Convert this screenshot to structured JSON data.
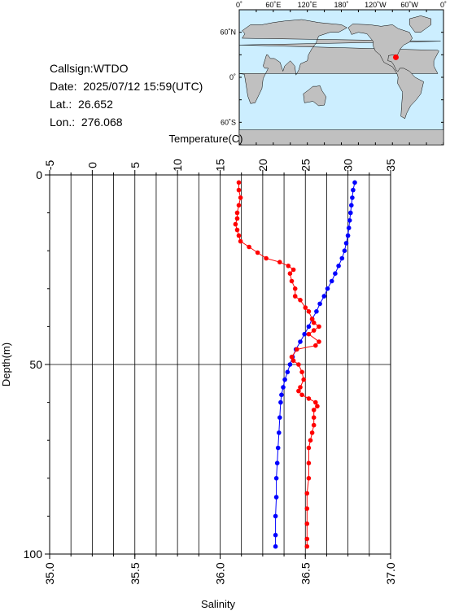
{
  "station": {
    "callsign_label": "Callsign:",
    "callsign": "WTDO",
    "date_label": "Date:",
    "date": "2025/07/12 15:59(UTC)",
    "lat_label": "Lat.:",
    "lat": "26.652",
    "lon_label": "Lon.:",
    "lon": "276.068"
  },
  "map": {
    "lon_labels": [
      "0˚",
      "60˚E",
      "120˚E",
      "180˚",
      "120˚W",
      "60˚W",
      "0˚"
    ],
    "lat_labels": [
      "60˚N",
      "0˚",
      "60˚S"
    ],
    "ocean_color": "#cceeff",
    "land_color": "#c0c0c0",
    "marker_color": "#ff0000",
    "marker": {
      "lon": 276.068,
      "lat": 26.652
    }
  },
  "chart_data": {
    "type": "line",
    "top_axis": {
      "label": "Temperature(C)",
      "range": [
        -5,
        35
      ],
      "ticks": [
        "-5",
        "0",
        "5",
        "10",
        "15",
        "20",
        "25",
        "30",
        "35"
      ]
    },
    "bottom_axis": {
      "label": "Salinity",
      "range": [
        35.0,
        37.0
      ],
      "ticks": [
        "35.0",
        "35.5",
        "36.0",
        "36.5",
        "37.0"
      ]
    },
    "y_axis": {
      "label": "Depth(m)",
      "range": [
        0,
        100
      ],
      "inverted": true,
      "ticks": [
        "0",
        "50",
        "100"
      ]
    },
    "grid": true,
    "series": [
      {
        "axis": "temperature",
        "color": "#0000ff",
        "points": [
          [
            30.8,
            2
          ],
          [
            30.6,
            4
          ],
          [
            30.5,
            6
          ],
          [
            30.4,
            8
          ],
          [
            30.3,
            10
          ],
          [
            30.2,
            12
          ],
          [
            30.1,
            14
          ],
          [
            30.0,
            16
          ],
          [
            29.8,
            18
          ],
          [
            29.6,
            20
          ],
          [
            29.3,
            22
          ],
          [
            28.9,
            24
          ],
          [
            28.5,
            26
          ],
          [
            28.1,
            28
          ],
          [
            27.6,
            30
          ],
          [
            27.2,
            32
          ],
          [
            26.7,
            34
          ],
          [
            26.3,
            36
          ],
          [
            25.8,
            38
          ],
          [
            25.4,
            40
          ],
          [
            24.9,
            42
          ],
          [
            24.4,
            44
          ],
          [
            23.9,
            46
          ],
          [
            23.5,
            48
          ],
          [
            23.2,
            50
          ],
          [
            22.9,
            52
          ],
          [
            22.6,
            54
          ],
          [
            22.4,
            56
          ],
          [
            22.2,
            58
          ],
          [
            22.1,
            60
          ],
          [
            22.0,
            64
          ],
          [
            21.9,
            68
          ],
          [
            21.8,
            72
          ],
          [
            21.7,
            76
          ],
          [
            21.6,
            80
          ],
          [
            21.6,
            85
          ],
          [
            21.5,
            90
          ],
          [
            21.5,
            95
          ],
          [
            21.5,
            98
          ]
        ]
      },
      {
        "axis": "salinity",
        "color": "#ff0000",
        "points": [
          [
            36.11,
            2
          ],
          [
            36.11,
            4
          ],
          [
            36.12,
            6
          ],
          [
            36.11,
            8
          ],
          [
            36.1,
            10
          ],
          [
            36.1,
            11.5
          ],
          [
            36.09,
            13
          ],
          [
            36.1,
            14.5
          ],
          [
            36.11,
            16
          ],
          [
            36.12,
            17.5
          ],
          [
            36.17,
            19
          ],
          [
            36.22,
            20.5
          ],
          [
            36.27,
            22
          ],
          [
            36.35,
            23
          ],
          [
            36.4,
            24
          ],
          [
            36.43,
            25
          ],
          [
            36.41,
            26
          ],
          [
            36.42,
            28
          ],
          [
            36.44,
            30
          ],
          [
            36.44,
            32
          ],
          [
            36.47,
            33
          ],
          [
            36.5,
            35
          ],
          [
            36.52,
            36
          ],
          [
            36.54,
            38
          ],
          [
            36.55,
            39
          ],
          [
            36.58,
            40
          ],
          [
            36.55,
            41
          ],
          [
            36.52,
            42
          ],
          [
            36.58,
            44
          ],
          [
            36.56,
            45
          ],
          [
            36.45,
            46
          ],
          [
            36.42,
            48
          ],
          [
            36.43,
            49
          ],
          [
            36.46,
            50
          ],
          [
            36.48,
            52
          ],
          [
            36.49,
            54
          ],
          [
            36.47,
            56
          ],
          [
            36.46,
            57
          ],
          [
            36.48,
            58
          ],
          [
            36.52,
            59
          ],
          [
            36.56,
            60
          ],
          [
            36.57,
            61
          ],
          [
            36.55,
            62
          ],
          [
            36.55,
            64
          ],
          [
            36.55,
            66
          ],
          [
            36.54,
            68
          ],
          [
            36.53,
            70
          ],
          [
            36.52,
            72
          ],
          [
            36.52,
            76
          ],
          [
            36.52,
            80
          ],
          [
            36.51,
            84
          ],
          [
            36.51,
            88
          ],
          [
            36.51,
            92
          ],
          [
            36.51,
            96
          ],
          [
            36.51,
            98
          ]
        ]
      }
    ]
  }
}
